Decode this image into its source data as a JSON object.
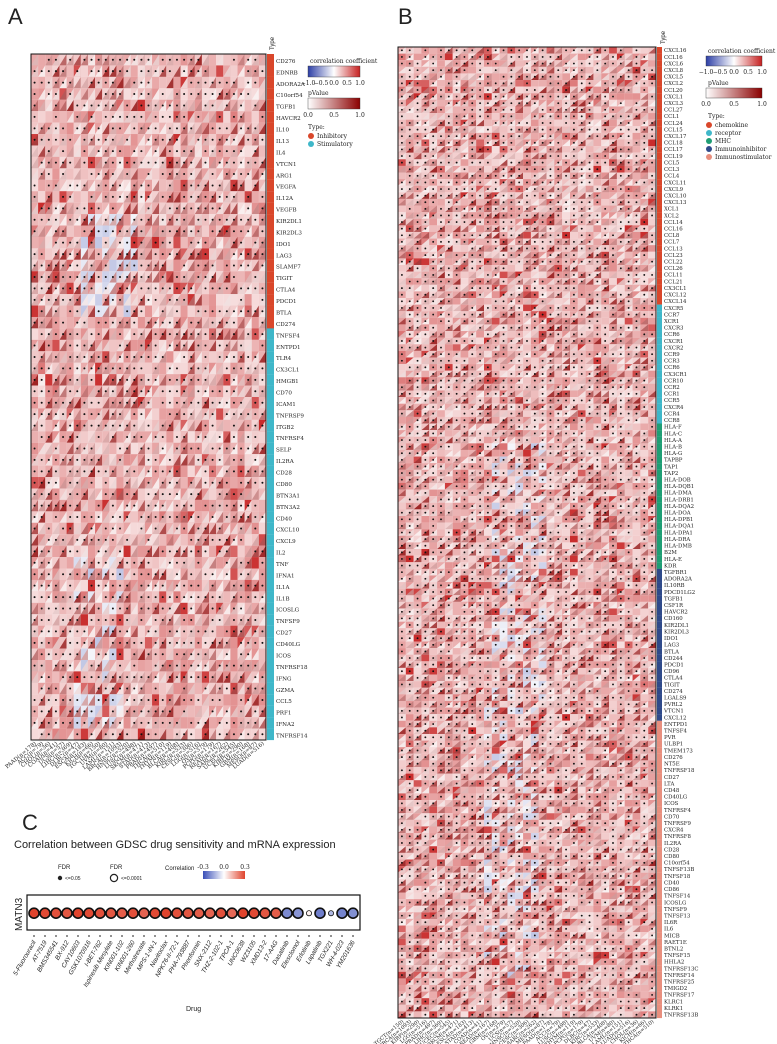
{
  "panels": {
    "A": {
      "label": "A",
      "type_header": "Type",
      "rows": [
        "CD276",
        "EDNRB",
        "ADORA2A",
        "C10orf54",
        "TGFB1",
        "HAVCR2",
        "IL10",
        "IL13",
        "IL4",
        "VTCN1",
        "ARG1",
        "VEGFA",
        "IL12A",
        "VEGFB",
        "KIR2DL1",
        "KIR2DL3",
        "IDO1",
        "LAG3",
        "SLAMF7",
        "TIGIT",
        "CTLA4",
        "PDCD1",
        "BTLA",
        "CD274",
        "TNFSF4",
        "ENTPD1",
        "TLR4",
        "CX3CL1",
        "HMGB1",
        "CD70",
        "ICAM1",
        "TNFRSF9",
        "ITGB2",
        "TNFRSF4",
        "SELP",
        "IL2RA",
        "CD28",
        "CD80",
        "BTN3A1",
        "BTN3A2",
        "CD40",
        "CXCL10",
        "CXCL9",
        "IL2",
        "TNF",
        "IFNA1",
        "IL1A",
        "IL1B",
        "ICOSLG",
        "TNFSF9",
        "CD27",
        "CD40LG",
        "ICOS",
        "TNFRSF18",
        "IFNG",
        "GZMA",
        "CCL5",
        "PRF1",
        "IFNA2",
        "TNFRSF14"
      ],
      "types": [
        "Inhibitory",
        "Inhibitory",
        "Inhibitory",
        "Inhibitory",
        "Inhibitory",
        "Inhibitory",
        "Inhibitory",
        "Inhibitory",
        "Inhibitory",
        "Inhibitory",
        "Inhibitory",
        "Inhibitory",
        "Inhibitory",
        "Inhibitory",
        "Inhibitory",
        "Inhibitory",
        "Inhibitory",
        "Inhibitory",
        "Inhibitory",
        "Inhibitory",
        "Inhibitory",
        "Inhibitory",
        "Inhibitory",
        "Inhibitory",
        "Stimulatory",
        "Stimulatory",
        "Stimulatory",
        "Stimulatory",
        "Stimulatory",
        "Stimulatory",
        "Stimulatory",
        "Stimulatory",
        "Stimulatory",
        "Stimulatory",
        "Stimulatory",
        "Stimulatory",
        "Stimulatory",
        "Stimulatory",
        "Stimulatory",
        "Stimulatory",
        "Stimulatory",
        "Stimulatory",
        "Stimulatory",
        "Stimulatory",
        "Stimulatory",
        "Stimulatory",
        "Stimulatory",
        "Stimulatory",
        "Stimulatory",
        "Stimulatory",
        "Stimulatory",
        "Stimulatory",
        "Stimulatory",
        "Stimulatory",
        "Stimulatory",
        "Stimulatory",
        "Stimulatory",
        "Stimulatory",
        "Stimulatory",
        "Stimulatory"
      ],
      "type_colors": {
        "Inhibitory": "#d9472b",
        "Stimulatory": "#3fb7c9"
      },
      "legend": {
        "corr_title": "correlation coefficient",
        "corr_ticks": [
          "−1.0",
          "−0.5",
          "0.0",
          "0.5",
          "1.0"
        ],
        "p_title": "pValue",
        "p_ticks": [
          "0.0",
          "0.5",
          "1.0"
        ],
        "type_title": "Type:",
        "type_items": [
          "Inhibitory",
          "Stimulatory"
        ]
      },
      "columns": [
        "PAAD(n=178)",
        "ACC(n=79)",
        "CHOL(n=36)",
        "COAD(n=41)",
        "UCS(n=57)",
        "LIHC(n=369)",
        "DLBC(n=47)",
        "ESCA(n=183)",
        "KICH(n=66)",
        "TGCT(n=150)",
        "UVM(n=80)",
        "LAML(n=151)",
        "BRCA(n=1093)",
        "HNSC(n=520)",
        "LUSC(n=498)",
        "SKCM(n=471)",
        "STAD(n=413)",
        "PRAD(n=497)",
        "THCA(n=510)",
        "THYM(n=119)",
        "BLCA(n=408)",
        "KIRC(n=533)",
        "CESC(n=306)",
        "LGG(n=516)",
        "OV(n=379)",
        "PCPG(n=179)",
        "READ(n=167)",
        "SARC(n=262)",
        "UCEC(n=545)",
        "KIRP(n=290)",
        "GBM(n=168)",
        "MESO(n=87)",
        "LUAD(n=516)"
      ]
    },
    "B": {
      "label": "B",
      "type_header": "Type",
      "rows": [
        "CXCL16",
        "CCL16",
        "CXCL6",
        "CXCL8",
        "CXCL5",
        "CXCL2",
        "CCL20",
        "CXCL1",
        "CXCL3",
        "CCL27",
        "CCL1",
        "CCL24",
        "CCL15",
        "CXCL17",
        "CCL18",
        "CCL17",
        "CCL19",
        "CCL5",
        "CCL3",
        "CCL4",
        "CXCL11",
        "CXCL9",
        "CXCL10",
        "CXCL13",
        "XCL1",
        "XCL2",
        "CCL14",
        "CCL16",
        "CCL8",
        "CCL7",
        "CCL13",
        "CCL23",
        "CCL22",
        "CCL26",
        "CCL11",
        "CCL21",
        "CX3CL1",
        "CXCL12",
        "CXCL14",
        "CXCR5",
        "CCR7",
        "XCR1",
        "CXCR3",
        "CCR6",
        "CXCR1",
        "CXCR2",
        "CCR9",
        "CCR3",
        "CCR6",
        "CX3CR1",
        "CCR10",
        "CCR2",
        "CCR1",
        "CCR5",
        "CXCR4",
        "CCR4",
        "CCR8",
        "HLA-F",
        "HLA-C",
        "HLA-A",
        "HLA-B",
        "HLA-G",
        "TAPBP",
        "TAP1",
        "TAP2",
        "HLA-DOB",
        "HLA-DQB1",
        "HLA-DMA",
        "HLA-DRB1",
        "HLA-DQA2",
        "HLA-DOA",
        "HLA-DPB1",
        "HLA-DQA1",
        "HLA-DPA1",
        "HLA-DRA",
        "HLA-DMB",
        "B2M",
        "HLA-E",
        "KDR",
        "TGFBR1",
        "ADORA2A",
        "IL10RB",
        "PDCD1LG2",
        "TGFB1",
        "CSF1R",
        "HAVCR2",
        "CD160",
        "KIR2DL1",
        "KIR2DL3",
        "IDO1",
        "LAG3",
        "BTLA",
        "CD244",
        "PDCD1",
        "CD96",
        "CTLA4",
        "TIGIT",
        "CD274",
        "LGALS9",
        "PVRL2",
        "VTCN1",
        "CXCL12",
        "ENTPD1",
        "TNFSF4",
        "PVR",
        "ULBP1",
        "TMEM173",
        "CD276",
        "NT5E",
        "TNFRSF18",
        "CD27",
        "LTA",
        "CD48",
        "CD40LG",
        "ICOS",
        "TNFRSF4",
        "CD70",
        "TNFRSF9",
        "CXCR4",
        "TNFRSF8",
        "IL2RA",
        "CD28",
        "CD80",
        "C10orf54",
        "TNFSF13B",
        "TNFSF18",
        "CD40",
        "CD86",
        "TNFSF14",
        "ICOSLG",
        "TNFSF9",
        "TNFSF13",
        "IL6R",
        "IL6",
        "MICB",
        "RAET1E",
        "BTNL2",
        "TNFSF15",
        "HHLA2",
        "TNFRSF13C",
        "TNFRSF14",
        "TNFRSF25",
        "TMIGD2",
        "TNFRSF17",
        "KLRC1",
        "KLRK1",
        "TNFRSF13B"
      ],
      "types": [
        "chemokine",
        "chemokine",
        "chemokine",
        "chemokine",
        "chemokine",
        "chemokine",
        "chemokine",
        "chemokine",
        "chemokine",
        "chemokine",
        "chemokine",
        "chemokine",
        "chemokine",
        "chemokine",
        "chemokine",
        "chemokine",
        "chemokine",
        "chemokine",
        "chemokine",
        "chemokine",
        "chemokine",
        "chemokine",
        "chemokine",
        "chemokine",
        "chemokine",
        "chemokine",
        "chemokine",
        "chemokine",
        "chemokine",
        "chemokine",
        "chemokine",
        "chemokine",
        "chemokine",
        "chemokine",
        "chemokine",
        "chemokine",
        "chemokine",
        "chemokine",
        "chemokine",
        "receptor",
        "receptor",
        "receptor",
        "receptor",
        "receptor",
        "receptor",
        "receptor",
        "receptor",
        "receptor",
        "receptor",
        "receptor",
        "receptor",
        "receptor",
        "receptor",
        "receptor",
        "receptor",
        "receptor",
        "receptor",
        "MHC",
        "MHC",
        "MHC",
        "MHC",
        "MHC",
        "MHC",
        "MHC",
        "MHC",
        "MHC",
        "MHC",
        "MHC",
        "MHC",
        "MHC",
        "MHC",
        "MHC",
        "MHC",
        "MHC",
        "MHC",
        "MHC",
        "MHC",
        "MHC",
        "MHC",
        "Immunoinhibitor",
        "Immunoinhibitor",
        "Immunoinhibitor",
        "Immunoinhibitor",
        "Immunoinhibitor",
        "Immunoinhibitor",
        "Immunoinhibitor",
        "Immunoinhibitor",
        "Immunoinhibitor",
        "Immunoinhibitor",
        "Immunoinhibitor",
        "Immunoinhibitor",
        "Immunoinhibitor",
        "Immunoinhibitor",
        "Immunoinhibitor",
        "Immunoinhibitor",
        "Immunoinhibitor",
        "Immunoinhibitor",
        "Immunoinhibitor",
        "Immunoinhibitor",
        "Immunoinhibitor",
        "Immunoinhibitor",
        "Immunoinhibitor",
        "Immunostimulator",
        "Immunostimulator",
        "Immunostimulator",
        "Immunostimulator",
        "Immunostimulator",
        "Immunostimulator",
        "Immunostimulator",
        "Immunostimulator",
        "Immunostimulator",
        "Immunostimulator",
        "Immunostimulator",
        "Immunostimulator",
        "Immunostimulator",
        "Immunostimulator",
        "Immunostimulator",
        "Immunostimulator",
        "Immunostimulator",
        "Immunostimulator",
        "Immunostimulator",
        "Immunostimulator",
        "Immunostimulator",
        "Immunostimulator",
        "Immunostimulator",
        "Immunostimulator",
        "Immunostimulator",
        "Immunostimulator",
        "Immunostimulator",
        "Immunostimulator",
        "Immunostimulator",
        "Immunostimulator",
        "Immunostimulator",
        "Immunostimulator",
        "Immunostimulator",
        "Immunostimulator",
        "Immunostimulator",
        "Immunostimulator",
        "Immunostimulator",
        "Immunostimulator",
        "Immunostimulator",
        "Immunostimulator",
        "Immunostimulator",
        "Immunostimulator",
        "Immunostimulator",
        "Immunostimulator",
        "Immunostimulator"
      ],
      "type_colors": {
        "chemokine": "#d9472b",
        "receptor": "#3fb7c9",
        "MHC": "#1f9e74",
        "Immunoinhibitor": "#2f4a8a",
        "Immunostimulator": "#e88f7e"
      },
      "legend": {
        "corr_title": "correlation coefficient",
        "corr_ticks": [
          "−1.0",
          "−0.5",
          "0.0",
          "0.5",
          "1.0"
        ],
        "p_title": "pValue",
        "p_ticks": [
          "0.0",
          "0.5",
          "1.0"
        ],
        "type_title": "Type:",
        "type_items": [
          "chemokine",
          "receptor",
          "MHC",
          "Immunoinhibitor",
          "Immunostimulator"
        ]
      },
      "columns": [
        "TGCT(n=150)",
        "BRCA(n=1093)",
        "KIRP(n=290)",
        "LGG(n=516)",
        "PRAD(n=497)",
        "LIHC(n=369)",
        "UCEC(n=545)",
        "SKCM(n=471)",
        "ESCA(n=183)",
        "STAD(n=413)",
        "COAD(n=41)",
        "READ(n=167)",
        "GBM(n=168)",
        "OV(n=379)",
        "UCS(n=57)",
        "HNSC(n=520)",
        "CESC(n=306)",
        "SARC(n=262)",
        "MESO(n=87)",
        "PAAD(n=178)",
        "ACC(n=79)",
        "LUSC(n=498)",
        "THYM(n=119)",
        "PCPG(n=179)",
        "DLBC(n=47)",
        "KIRC(n=533)",
        "BLCA(n=408)",
        "UVM(n=80)",
        "LAML(n=151)",
        "LUAD(n=516)",
        "CHOL(n=36)",
        "KICH(n=66)",
        "THCA(n=510)"
      ]
    },
    "C": {
      "label": "C",
      "title": "Correlation between GDSC drug sensitivity and mRNA expression",
      "gene": "MATN3",
      "xlabel": "Drug",
      "legend": {
        "fdr_title": "FDR",
        "fdr_a": "<=0.05",
        "fdr_b": "<=0.0001",
        "corr_title": "Correlation",
        "corr_ticks": [
          "-0.3",
          "0.0",
          "0.3"
        ]
      }
    }
  },
  "chart_data": [
    {
      "type": "heatmap",
      "title": "A",
      "note": "Triangle heatmap: each cell shows correlation coefficient (fill) and p-value (triangle); dot = significant. Rows are immune checkpoint genes by Type.",
      "value_range": [
        -1,
        1
      ]
    },
    {
      "type": "heatmap",
      "title": "B",
      "note": "Triangle heatmap of immunomodulator genes across TCGA cancer types.",
      "value_range": [
        -1,
        1
      ]
    },
    {
      "type": "scatter",
      "title": "Correlation between GDSC drug sensitivity and mRNA expression",
      "xlabel": "Drug",
      "ylabel": "MATN3",
      "categories": [
        "5-Fluorouracil",
        "AT-7519",
        "BMS345541",
        "BX-912",
        "CAY10603",
        "GSK1070916",
        "I-BET-762",
        "Ispinesib Mesylate",
        "KIN001-102",
        "KIN001-260",
        "Methotrexate",
        "MPS-1-IN-1",
        "Navitoclax",
        "NPK76-II-72-1",
        "PHA-793887",
        "Phenformin",
        "SNX-2112",
        "THZ-2-102-1",
        "TPCA-1",
        "UNC0638",
        "WZ3105",
        "XMD13-2",
        "17-AAG",
        "Dasatinib",
        "Elesclomol",
        "Erlotinib",
        "Lapatinib",
        "TGX221",
        "WH-4-023",
        "YM201636"
      ],
      "values": [
        0.31,
        0.29,
        0.28,
        0.27,
        0.3,
        0.29,
        0.28,
        0.27,
        0.26,
        0.28,
        0.25,
        0.29,
        0.3,
        0.28,
        0.27,
        0.26,
        0.25,
        0.28,
        0.24,
        0.3,
        0.29,
        0.27,
        0.26,
        -0.2,
        -0.18,
        0.02,
        -0.22,
        -0.12,
        -0.21,
        -0.19
      ],
      "fdr_size": [
        "large",
        "large",
        "large",
        "large",
        "large",
        "large",
        "large",
        "large",
        "large",
        "large",
        "large",
        "large",
        "large",
        "large",
        "large",
        "large",
        "large",
        "large",
        "large",
        "large",
        "large",
        "large",
        "large",
        "large",
        "large",
        "small",
        "large",
        "small",
        "large",
        "large"
      ],
      "ylim": [
        -0.3,
        0.3
      ]
    }
  ]
}
